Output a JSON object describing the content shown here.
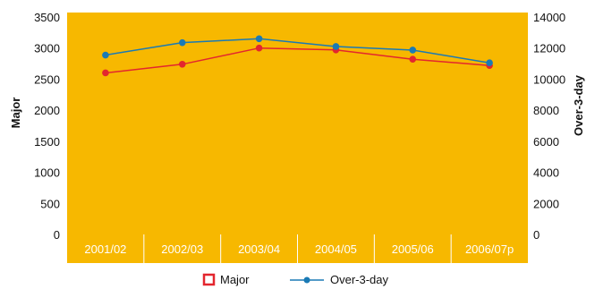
{
  "chart_data": {
    "type": "line",
    "categories": [
      "2001/02",
      "2002/03",
      "2003/04",
      "2004/05",
      "2005/06",
      "2006/07p"
    ],
    "series": [
      {
        "name": "Major",
        "axis": "left",
        "color": "#e3262e",
        "marker": "circle",
        "values": [
          2600,
          2740,
          3000,
          2970,
          2820,
          2720
        ]
      },
      {
        "name": "Over-3-day",
        "axis": "right",
        "color": "#1a7ab5",
        "marker": "circle",
        "values": [
          11550,
          12350,
          12600,
          12100,
          11870,
          11050
        ]
      }
    ],
    "ylabel": "Major",
    "ylabel_right": "Over-3-day",
    "ylim": [
      0,
      3500
    ],
    "ylim_right": [
      0,
      14000
    ],
    "yticks": [
      "0",
      "500",
      "1000",
      "1500",
      "2000",
      "2500",
      "3000",
      "3500"
    ],
    "yticks_right": [
      "0",
      "2000",
      "4000",
      "6000",
      "8000",
      "10000",
      "12000",
      "14000"
    ],
    "grid": false,
    "legend": "bottom-center",
    "colors": {
      "plot_background": "#f7b800",
      "major": "#e3262e",
      "over3day": "#1a7ab5",
      "x_tick_text": "#ffffff"
    }
  }
}
